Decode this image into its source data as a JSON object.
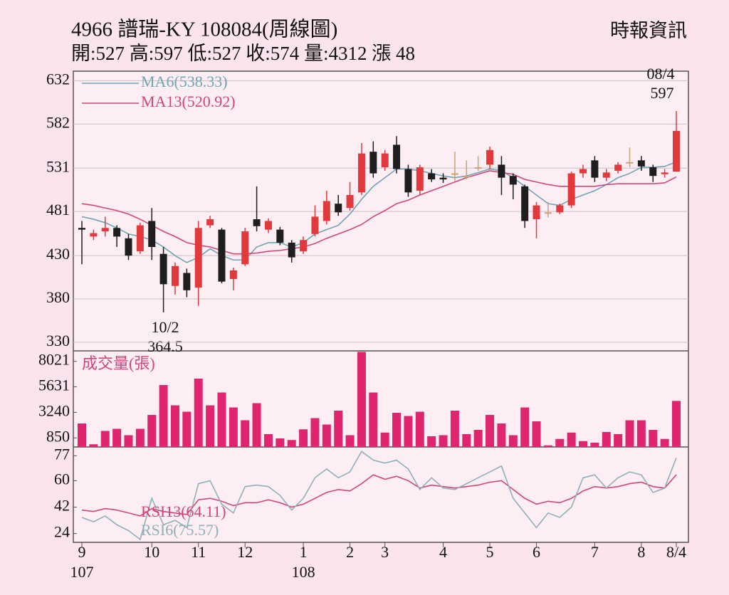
{
  "header": {
    "title": "4966  譜瑞-KY 108084(周線圖)",
    "stats": "開:527 高:597 低:527 收:574 量:4312 漲 48",
    "source": "時報資訊"
  },
  "chart_data": [
    {
      "type": "candlestick",
      "categories": [
        "9",
        null,
        null,
        null,
        null,
        null,
        "10",
        null,
        null,
        null,
        "11",
        null,
        null,
        null,
        "12",
        null,
        null,
        null,
        null,
        "1",
        null,
        null,
        null,
        "2",
        null,
        null,
        "3",
        null,
        null,
        null,
        null,
        "4",
        null,
        null,
        null,
        "5",
        null,
        null,
        null,
        "6",
        null,
        null,
        null,
        null,
        "7",
        null,
        null,
        null,
        "8",
        null,
        null,
        "8/4"
      ],
      "x_sublabels": [
        "107",
        null,
        null,
        null,
        null,
        null,
        null,
        null,
        null,
        null,
        null,
        null,
        null,
        null,
        null,
        null,
        null,
        null,
        null,
        "108",
        null,
        null,
        null,
        null,
        null,
        null,
        null,
        null,
        null,
        null,
        null,
        null,
        null,
        null,
        null,
        null,
        null,
        null,
        null,
        null,
        null,
        null,
        null,
        null,
        null,
        null,
        null,
        null,
        null,
        null,
        null,
        null
      ],
      "open": [
        462,
        452,
        458,
        462,
        450,
        435,
        470,
        432,
        395,
        410,
        393,
        465,
        460,
        403,
        420,
        472,
        460,
        460,
        445,
        435,
        455,
        470,
        490,
        485,
        503,
        550,
        532,
        558,
        530,
        505,
        525,
        520,
        525,
        522,
        532,
        535,
        535,
        522,
        510,
        472,
        480,
        480,
        488,
        525,
        540,
        520,
        528,
        538,
        540,
        532,
        524,
        527
      ],
      "close": [
        460,
        456,
        462,
        452,
        430,
        465,
        440,
        397,
        418,
        390,
        462,
        472,
        400,
        413,
        458,
        464,
        470,
        445,
        428,
        448,
        475,
        493,
        480,
        500,
        548,
        525,
        548,
        530,
        503,
        532,
        518,
        518,
        525,
        522,
        532,
        552,
        520,
        512,
        470,
        488,
        480,
        488,
        525,
        530,
        520,
        526,
        535,
        538,
        533,
        522,
        526,
        574
      ],
      "high": [
        470,
        460,
        475,
        465,
        455,
        468,
        485,
        440,
        422,
        415,
        470,
        476,
        462,
        416,
        462,
        510,
        473,
        463,
        448,
        452,
        488,
        505,
        500,
        515,
        560,
        562,
        552,
        568,
        535,
        535,
        530,
        525,
        550,
        540,
        545,
        556,
        545,
        525,
        512,
        492,
        492,
        490,
        527,
        535,
        545,
        530,
        538,
        555,
        545,
        535,
        530,
        597
      ],
      "low": [
        420,
        448,
        452,
        440,
        425,
        432,
        425,
        364.5,
        385,
        382,
        372,
        462,
        398,
        390,
        418,
        458,
        456,
        442,
        422,
        432,
        452,
        466,
        476,
        482,
        500,
        520,
        528,
        525,
        498,
        500,
        515,
        514,
        516,
        518,
        528,
        530,
        500,
        495,
        462,
        450,
        474,
        478,
        485,
        520,
        515,
        516,
        525,
        532,
        528,
        515,
        520,
        527
      ],
      "up_color": "#e2393d",
      "down_color": "#1e1e1e",
      "doji_color": "#c8a27a",
      "series": [
        {
          "name": "MA6(538.33)",
          "color": "#6fa4b3",
          "values": [
            475,
            472,
            468,
            462,
            455,
            452,
            448,
            440,
            430,
            422,
            428,
            438,
            430,
            425,
            425,
            440,
            445,
            445,
            440,
            445,
            455,
            460,
            465,
            478,
            495,
            510,
            520,
            530,
            530,
            528,
            525,
            522,
            520,
            522,
            526,
            530,
            528,
            520,
            510,
            500,
            490,
            488,
            495,
            500,
            505,
            512,
            520,
            525,
            532,
            532,
            533,
            538.33
          ]
        },
        {
          "name": "MA13(520.92)",
          "color": "#d2457c",
          "values": [
            490,
            488,
            485,
            482,
            478,
            472,
            465,
            458,
            452,
            445,
            442,
            440,
            436,
            432,
            432,
            433,
            435,
            436,
            438,
            440,
            444,
            450,
            455,
            460,
            466,
            475,
            482,
            490,
            494,
            500,
            505,
            510,
            515,
            520,
            524,
            528,
            526,
            524,
            518,
            515,
            512,
            510,
            510,
            510,
            510,
            512,
            513,
            513,
            513,
            513,
            514,
            520.92
          ]
        }
      ],
      "ylim": [
        320,
        643
      ],
      "yticks": [
        330,
        380,
        430,
        481,
        531,
        582,
        632
      ],
      "grid": true,
      "annotations": [
        "10/2",
        "364.5",
        "08/4",
        "597"
      ]
    },
    {
      "type": "bar",
      "title": "成交量(張)",
      "color": "#e0256f",
      "values": [
        2200,
        250,
        1500,
        1700,
        1100,
        1700,
        3000,
        5800,
        3900,
        3300,
        6400,
        3900,
        5100,
        3700,
        2500,
        4100,
        1200,
        800,
        650,
        1650,
        2700,
        2100,
        3400,
        1100,
        8900,
        5100,
        1350,
        3200,
        2900,
        3300,
        1000,
        1100,
        3400,
        1200,
        1600,
        3000,
        2200,
        1100,
        3700,
        2400,
        150,
        750,
        1350,
        550,
        400,
        1400,
        1200,
        2500,
        2500,
        1600,
        750,
        4312
      ],
      "ylim": [
        0,
        9000
      ],
      "yticks": [
        850,
        3240,
        5631,
        8021
      ]
    },
    {
      "type": "line",
      "series": [
        {
          "name": "RSI13(64.11)",
          "color": "#d2457c",
          "values": [
            40,
            39,
            41,
            40,
            38,
            36,
            41,
            39,
            38,
            37,
            47,
            48,
            46,
            43,
            45,
            45,
            47,
            45,
            42,
            44,
            48,
            52,
            54,
            53,
            58,
            64,
            61,
            63,
            60,
            55,
            57,
            56,
            55,
            56,
            57,
            59,
            60,
            54,
            48,
            44,
            46,
            45,
            48,
            53,
            56,
            55,
            56,
            58,
            59,
            56,
            55,
            64.11
          ]
        },
        {
          "name": "RSI6(75.57)",
          "color": "#8fb0b8",
          "values": [
            35,
            32,
            36,
            30,
            26,
            20,
            48,
            30,
            33,
            28,
            58,
            60,
            44,
            38,
            56,
            57,
            56,
            50,
            40,
            48,
            62,
            68,
            62,
            66,
            80,
            74,
            72,
            74,
            68,
            54,
            62,
            55,
            54,
            58,
            62,
            66,
            70,
            48,
            38,
            28,
            38,
            35,
            42,
            62,
            64,
            55,
            62,
            66,
            64,
            52,
            55,
            75.57
          ]
        }
      ],
      "ylim": [
        18,
        83
      ],
      "yticks": [
        24,
        42,
        60,
        77
      ]
    }
  ]
}
